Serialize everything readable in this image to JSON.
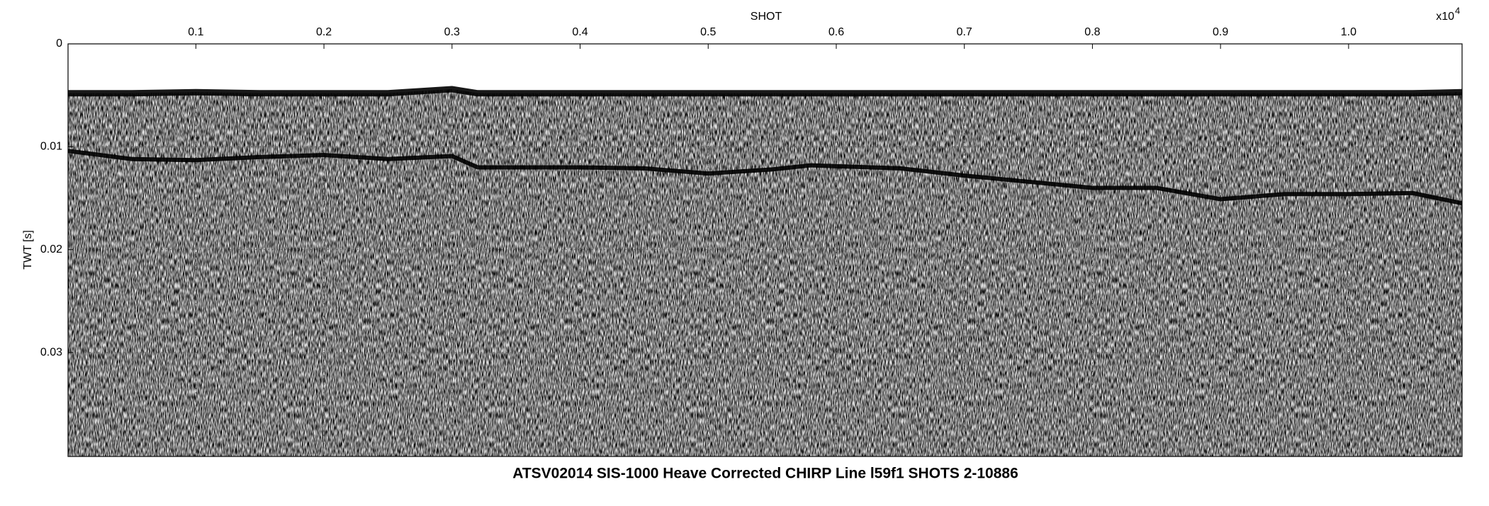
{
  "chart_data": {
    "type": "line",
    "title": "ATSV02014 SIS-1000 Heave Corrected CHIRP Line l59f1 SHOTS 2-10886",
    "x_label": "SHOT",
    "x_multiplier": {
      "base": "x10",
      "exponent": "4"
    },
    "y_label": "TWT [s]",
    "xlim": [
      0.0002,
      1.0886
    ],
    "ylim": [
      0,
      0.0401
    ],
    "y_inverted": true,
    "xticks": [
      0.1,
      0.2,
      0.3,
      0.4,
      0.5,
      0.6,
      0.7,
      0.8,
      0.9,
      {
        "value": 1,
        "label": "1.0"
      }
    ],
    "yticks": [
      0,
      0.01,
      0.02,
      0.03
    ],
    "grid": true,
    "x": [
      0.0002,
      0.05,
      0.1,
      0.15,
      0.2,
      0.25,
      0.3,
      0.32,
      0.4,
      0.45,
      0.5,
      0.55,
      0.58,
      0.65,
      0.7,
      0.75,
      0.8,
      0.85,
      0.9,
      0.95,
      1,
      1.05,
      1.0886
    ],
    "series": [
      {
        "color": "#000000",
        "values": [
          0.0048,
          0.0048,
          0.0047,
          0.0048,
          0.0048,
          0.0048,
          0.0044,
          0.0048,
          0.0048,
          0.0048,
          0.0048,
          0.0048,
          0.0048,
          0.0048,
          0.0048,
          0.0048,
          0.0048,
          0.0048,
          0.0048,
          0.0048,
          0.0048,
          0.0048,
          0.0047
        ]
      },
      {
        "color": "#000000",
        "values": [
          0.0104,
          0.0112,
          0.0113,
          0.011,
          0.0108,
          0.0112,
          0.0109,
          0.012,
          0.012,
          0.0121,
          0.0126,
          0.0122,
          0.0118,
          0.0121,
          0.0128,
          0.0134,
          0.014,
          0.014,
          0.0151,
          0.0146,
          0.0146,
          0.0145,
          0.0155
        ]
      }
    ]
  }
}
